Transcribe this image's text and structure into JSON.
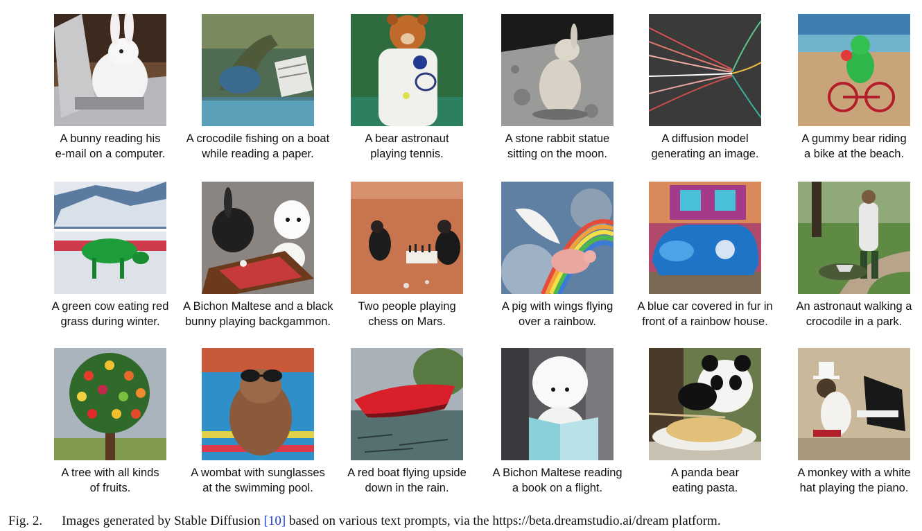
{
  "figure": {
    "rows": [
      [
        {
          "line1": "A bunny reading his",
          "line2": "e-mail on a computer.",
          "image": "bunny-laptop-image"
        },
        {
          "line1": "A crocodile fishing on a boat",
          "line2": "while reading a paper.",
          "image": "crocodile-boat-image"
        },
        {
          "line1": "A bear astronaut",
          "line2": "playing tennis.",
          "image": "bear-astronaut-image"
        },
        {
          "line1": "A stone rabbit statue",
          "line2": "sitting on the moon.",
          "image": "stone-rabbit-image"
        },
        {
          "line1": "A diffusion model",
          "line2": "generating an image.",
          "image": "diffusion-model-image"
        },
        {
          "line1": "A gummy bear riding",
          "line2": "a bike at the beach.",
          "image": "gummy-bear-image"
        }
      ],
      [
        {
          "line1": "A green cow eating red",
          "line2": "grass during winter.",
          "image": "green-cow-image"
        },
        {
          "line1": "A Bichon Maltese and a black",
          "line2": "bunny playing backgammon.",
          "image": "bichon-backgammon-image"
        },
        {
          "line1": "Two people playing",
          "line2": "chess on Mars.",
          "image": "chess-mars-image"
        },
        {
          "line1": "A pig with wings flying",
          "line2": "over a rainbow.",
          "image": "flying-pig-image"
        },
        {
          "line1": "A blue car covered in fur in",
          "line2": "front of a rainbow house.",
          "image": "blue-car-image"
        },
        {
          "line1": "An astronaut walking a",
          "line2": "crocodile in a park.",
          "image": "astronaut-crocodile-image"
        }
      ],
      [
        {
          "line1": "A tree with all kinds",
          "line2": "of fruits.",
          "image": "fruit-tree-image"
        },
        {
          "line1": "A wombat with sunglasses",
          "line2": "at the swimming pool.",
          "image": "wombat-pool-image"
        },
        {
          "line1": "A red boat flying upside",
          "line2": "down in the rain.",
          "image": "red-boat-image"
        },
        {
          "line1": "A Bichon Maltese reading",
          "line2": "a book on a flight.",
          "image": "bichon-book-image"
        },
        {
          "line1": "A panda bear",
          "line2": "eating pasta.",
          "image": "panda-pasta-image"
        },
        {
          "line1": "A monkey with a white",
          "line2": "hat playing the piano.",
          "image": "monkey-piano-image"
        }
      ]
    ],
    "caption": {
      "label": "Fig. 2.",
      "text_before": "Images generated by Stable Diffusion ",
      "ref": "[10]",
      "text_after": " based on various text prompts, via the https://beta.dreamstudio.ai/dream platform."
    }
  }
}
